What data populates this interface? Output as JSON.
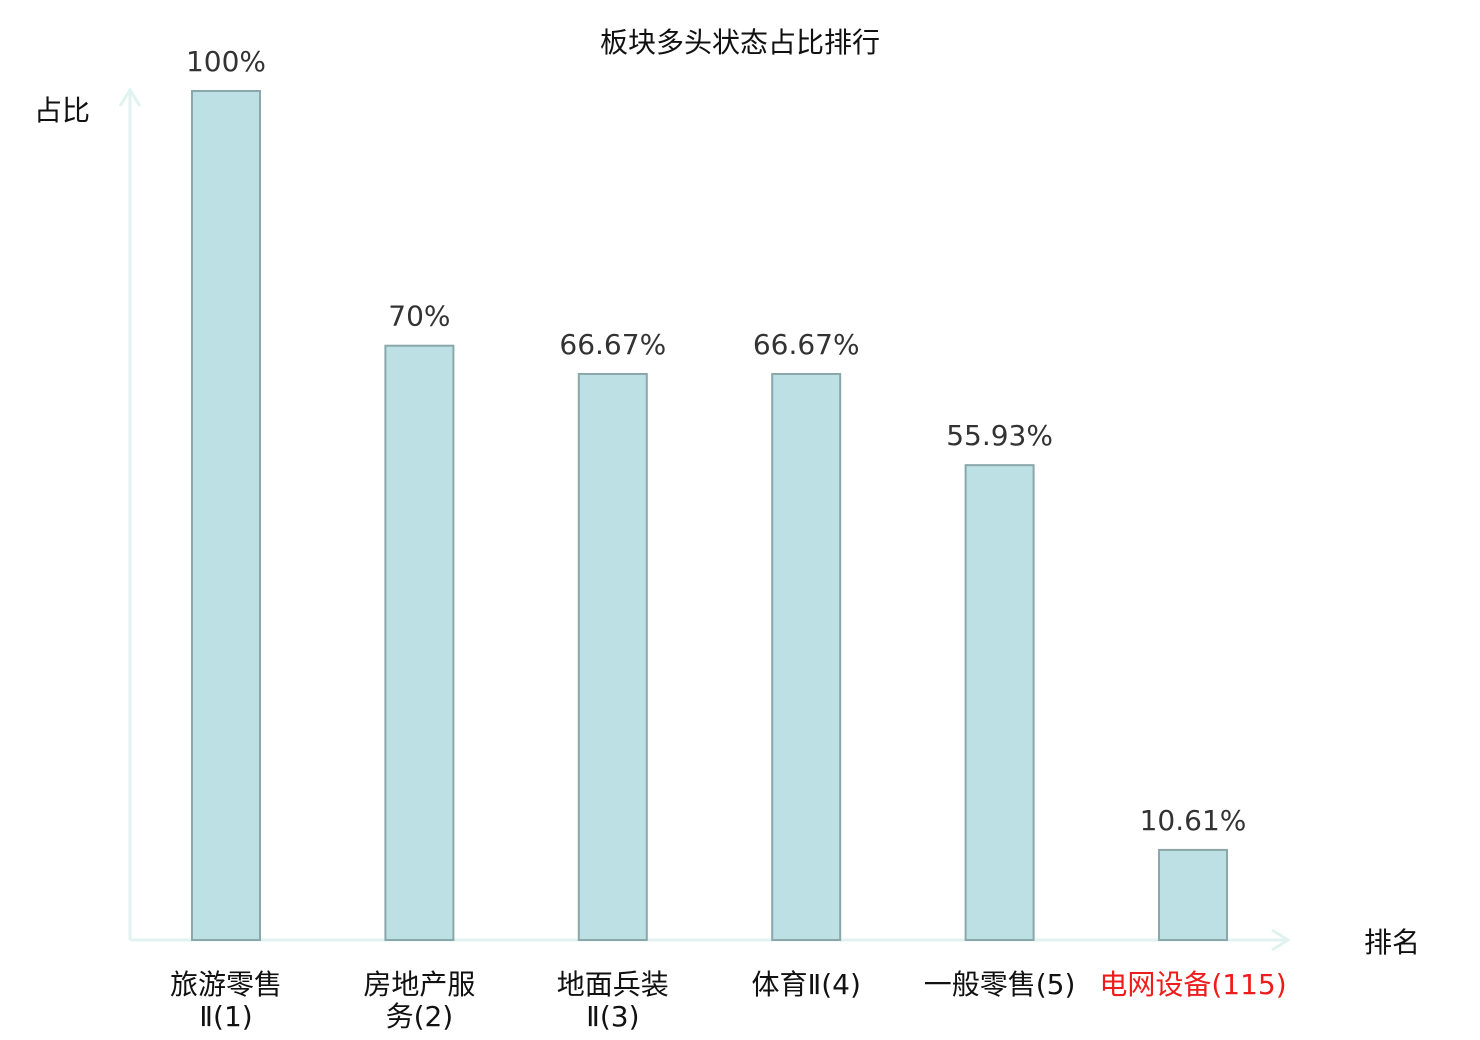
{
  "chart_data": {
    "type": "bar",
    "title": "板块多头状态占比排行",
    "ylabel": "占比",
    "xlabel": "排名",
    "ylim": [
      0,
      100
    ],
    "grid": false,
    "legend": "none",
    "categories": [
      {
        "lines": [
          "旅游零售",
          "Ⅱ(1)"
        ],
        "highlight": false
      },
      {
        "lines": [
          "房地产服",
          "务(2)"
        ],
        "highlight": false
      },
      {
        "lines": [
          "地面兵装",
          "Ⅱ(3)"
        ],
        "highlight": false
      },
      {
        "lines": [
          "体育Ⅱ(4)"
        ],
        "highlight": false
      },
      {
        "lines": [
          "一般零售(5)"
        ],
        "highlight": false
      },
      {
        "lines": [
          "电网设备(115)"
        ],
        "highlight": true
      }
    ],
    "values": [
      100,
      70,
      66.67,
      66.67,
      55.93,
      10.61
    ],
    "value_labels": [
      "100%",
      "70%",
      "66.67%",
      "66.67%",
      "55.93%",
      "10.61%"
    ]
  },
  "colors": {
    "bar_fill": "#bce0e3",
    "bar_stroke": "#8aa7aa",
    "axis": "#e1f3f1",
    "highlight_text": "#ee1c1c",
    "label_text": "#111111"
  }
}
